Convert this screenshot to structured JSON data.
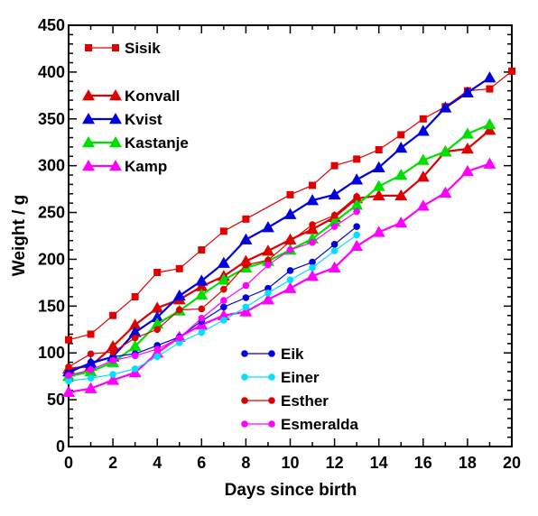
{
  "chart_data": {
    "type": "line",
    "xlabel": "Days since birth",
    "ylabel": "Weight / g",
    "xlim": [
      0,
      20
    ],
    "ylim": [
      0,
      450
    ],
    "xticks": [
      0,
      2,
      4,
      6,
      8,
      10,
      12,
      14,
      16,
      18,
      20
    ],
    "yticks": [
      0,
      50,
      100,
      150,
      200,
      250,
      300,
      350,
      400,
      450
    ],
    "grid": false,
    "series": [
      {
        "name": "Sisik",
        "color": "#e00000",
        "marker": "square",
        "line": "thin",
        "x": [
          0,
          1,
          2,
          3,
          4,
          5,
          6,
          7,
          8,
          10,
          11,
          12,
          13,
          14,
          15,
          16,
          17,
          18,
          19,
          20
        ],
        "y": [
          114,
          120,
          140,
          160,
          186,
          190,
          210,
          230,
          243,
          269,
          279,
          300,
          307,
          317,
          333,
          350,
          363,
          380,
          382,
          401
        ]
      },
      {
        "name": "Konvall",
        "color": "#e00000",
        "marker": "triangle",
        "line": "thick",
        "x": [
          0,
          1,
          2,
          3,
          4,
          5,
          6,
          7,
          8,
          9,
          10,
          11,
          12,
          13,
          14,
          15,
          16,
          17,
          18,
          19
        ],
        "y": [
          83,
          86,
          107,
          130,
          148,
          157,
          171,
          182,
          198,
          209,
          221,
          232,
          245,
          265,
          268,
          268,
          288,
          315,
          318,
          338
        ]
      },
      {
        "name": "Kvist",
        "color": "#0000e0",
        "marker": "triangle",
        "line": "thick",
        "x": [
          0,
          1,
          2,
          3,
          4,
          5,
          6,
          7,
          8,
          9,
          10,
          11,
          12,
          13,
          14,
          15,
          16,
          17,
          18,
          19
        ],
        "y": [
          80,
          89,
          96,
          122,
          138,
          161,
          177,
          196,
          221,
          234,
          248,
          263,
          269,
          285,
          298,
          319,
          337,
          362,
          378,
          394
        ]
      },
      {
        "name": "Kastanje",
        "color": "#00e000",
        "marker": "triangle",
        "line": "thick",
        "x": [
          0,
          1,
          2,
          3,
          4,
          5,
          6,
          7,
          8,
          9,
          10,
          11,
          12,
          13,
          14,
          15,
          16,
          17,
          18,
          19
        ],
        "y": [
          75,
          80,
          90,
          107,
          131,
          145,
          162,
          178,
          191,
          198,
          210,
          222,
          240,
          258,
          278,
          290,
          306,
          315,
          334,
          344
        ]
      },
      {
        "name": "Kamp",
        "color": "#ff00ff",
        "marker": "triangle",
        "line": "thick",
        "x": [
          0,
          1,
          2,
          3,
          4,
          5,
          6,
          7,
          8,
          9,
          10,
          11,
          12,
          13,
          14,
          15,
          16,
          17,
          18,
          19
        ],
        "y": [
          58,
          62,
          71,
          79,
          100,
          117,
          130,
          140,
          144,
          157,
          169,
          182,
          191,
          214,
          229,
          239,
          257,
          271,
          294,
          302
        ]
      },
      {
        "name": "Eik",
        "color": "#0000e0",
        "marker": "circle",
        "line": "thin",
        "x": [
          0,
          1,
          2,
          3,
          4,
          5,
          6,
          7,
          8,
          9,
          10,
          11,
          12,
          13
        ],
        "y": [
          78,
          90,
          96,
          99,
          108,
          117,
          134,
          149,
          159,
          169,
          188,
          197,
          216,
          235
        ]
      },
      {
        "name": "Einer",
        "color": "#00e0ff",
        "marker": "circle",
        "line": "thin",
        "x": [
          0,
          1,
          2,
          3,
          4,
          5,
          6,
          7,
          8,
          9,
          10,
          11,
          12,
          13
        ],
        "y": [
          70,
          73,
          77,
          83,
          96,
          111,
          122,
          135,
          149,
          164,
          178,
          191,
          209,
          226
        ]
      },
      {
        "name": "Esther",
        "color": "#e00000",
        "marker": "circle",
        "line": "thin",
        "x": [
          0,
          1,
          2,
          3,
          4,
          5,
          6,
          7,
          8,
          9,
          10,
          11,
          12,
          13
        ],
        "y": [
          85,
          99,
          101,
          116,
          125,
          146,
          147,
          168,
          194,
          199,
          219,
          237,
          247,
          267
        ]
      },
      {
        "name": "Esmeralda",
        "color": "#ff00ff",
        "marker": "circle",
        "line": "thin",
        "x": [
          0,
          1,
          2,
          3,
          4,
          5,
          6,
          7,
          8,
          9,
          10,
          11,
          12,
          13
        ],
        "y": [
          76,
          82,
          92,
          97,
          104,
          116,
          137,
          156,
          172,
          194,
          210,
          218,
          235,
          251
        ]
      }
    ],
    "legend_groups": [
      {
        "placement": "top-left",
        "items": [
          "Sisik"
        ]
      },
      {
        "placement": "upper-left",
        "items": [
          "Konvall",
          "Kvist",
          "Kastanje",
          "Kamp"
        ]
      },
      {
        "placement": "lower-middle",
        "items": [
          "Eik",
          "Einer",
          "Esther",
          "Esmeralda"
        ]
      }
    ]
  }
}
